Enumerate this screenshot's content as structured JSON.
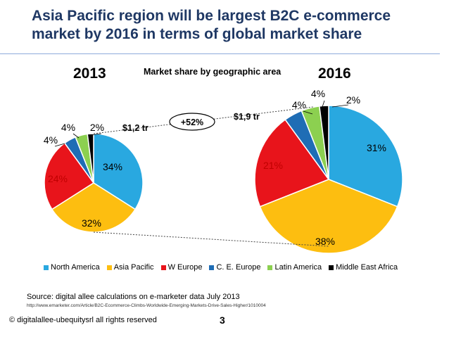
{
  "slide": {
    "title": "Asia Pacific region will be largest B2C e-commerce market by 2016 in terms of global market share",
    "subtitle": "Market share by geographic area",
    "year_left": "2013",
    "year_right": "2016",
    "total_left": "$1,2 tr",
    "total_right": "$1,9 tr",
    "growth": "+52%",
    "source": "Source: digital allee calculations on e-marketer data July 2013",
    "url": "http://www.emarketer.com/Article/B2C-Ecommerce-Climbs-Worldwide-Emerging-Markets-Drive-Sales-Higher/1010004",
    "footer": "© digitalallee-ubequitysrl  all rights reserved",
    "page_number": "3"
  },
  "chart_data": {
    "type": "pie",
    "series_names": [
      "North America",
      "Asia Pacific",
      "W Europe",
      "C. E. Europe",
      "Latin America",
      "Middle East Africa"
    ],
    "colors": [
      "#29a8e0",
      "#fdbe10",
      "#e8141b",
      "#1f6db5",
      "#8cd050",
      "#000000"
    ],
    "pies": [
      {
        "year": "2013",
        "total": "$1,2 tr",
        "values": [
          34,
          32,
          24,
          4,
          4,
          2
        ]
      },
      {
        "year": "2016",
        "total": "$1,9 tr",
        "values": [
          31,
          38,
          21,
          4,
          4,
          2
        ]
      }
    ],
    "annotation": "+52%",
    "legend_position": "bottom"
  }
}
